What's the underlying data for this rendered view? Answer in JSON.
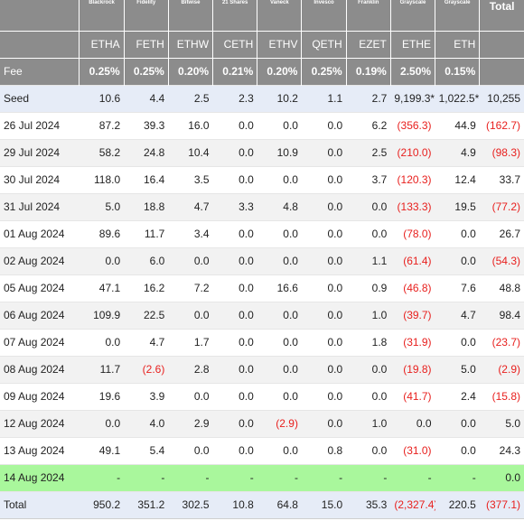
{
  "header": {
    "issuers": [
      "Blackrock",
      "Fidelity",
      "Bitwise",
      "21 Shares",
      "Vaneck",
      "Invesco",
      "Franklin",
      "Grayscale",
      "Grayscale"
    ],
    "total_label": "Total",
    "tickers": [
      "ETHA",
      "FETH",
      "ETHW",
      "CETH",
      "ETHV",
      "QETH",
      "EZET",
      "ETHE",
      "ETH"
    ],
    "fee_label": "Fee",
    "fees": [
      "0.25%",
      "0.25%",
      "0.20%",
      "0.21%",
      "0.20%",
      "0.25%",
      "0.19%",
      "2.50%",
      "0.15%"
    ]
  },
  "rows": [
    {
      "label": "Seed",
      "kind": "seed",
      "cells": [
        "10.6",
        "4.4",
        "2.5",
        "2.3",
        "10.2",
        "1.1",
        "2.7",
        "9,199.3*",
        "1,022.5*",
        "10,255"
      ]
    },
    {
      "label": "26 Jul 2024",
      "kind": "odd",
      "cells": [
        "87.2",
        "39.3",
        "16.0",
        "0.0",
        "0.0",
        "0.0",
        "6.2",
        "(356.3)",
        "44.9",
        "(162.7)"
      ]
    },
    {
      "label": "29 Jul 2024",
      "kind": "even",
      "cells": [
        "58.2",
        "24.8",
        "10.4",
        "0.0",
        "10.9",
        "0.0",
        "2.5",
        "(210.0)",
        "4.9",
        "(98.3)"
      ]
    },
    {
      "label": "30 Jul 2024",
      "kind": "odd",
      "cells": [
        "118.0",
        "16.4",
        "3.5",
        "0.0",
        "0.0",
        "0.0",
        "3.7",
        "(120.3)",
        "12.4",
        "33.7"
      ]
    },
    {
      "label": "31 Jul 2024",
      "kind": "even",
      "cells": [
        "5.0",
        "18.8",
        "4.7",
        "3.3",
        "4.8",
        "0.0",
        "0.0",
        "(133.3)",
        "19.5",
        "(77.2)"
      ]
    },
    {
      "label": "01 Aug 2024",
      "kind": "odd",
      "cells": [
        "89.6",
        "11.7",
        "3.4",
        "0.0",
        "0.0",
        "0.0",
        "0.0",
        "(78.0)",
        "0.0",
        "26.7"
      ]
    },
    {
      "label": "02 Aug 2024",
      "kind": "even",
      "cells": [
        "0.0",
        "6.0",
        "0.0",
        "0.0",
        "0.0",
        "0.0",
        "1.1",
        "(61.4)",
        "0.0",
        "(54.3)"
      ]
    },
    {
      "label": "05 Aug 2024",
      "kind": "odd",
      "cells": [
        "47.1",
        "16.2",
        "7.2",
        "0.0",
        "16.6",
        "0.0",
        "0.9",
        "(46.8)",
        "7.6",
        "48.8"
      ]
    },
    {
      "label": "06 Aug 2024",
      "kind": "even",
      "cells": [
        "109.9",
        "22.5",
        "0.0",
        "0.0",
        "0.0",
        "0.0",
        "1.0",
        "(39.7)",
        "4.7",
        "98.4"
      ]
    },
    {
      "label": "07 Aug 2024",
      "kind": "odd",
      "cells": [
        "0.0",
        "4.7",
        "1.7",
        "0.0",
        "0.0",
        "0.0",
        "1.8",
        "(31.9)",
        "0.0",
        "(23.7)"
      ]
    },
    {
      "label": "08 Aug 2024",
      "kind": "even",
      "cells": [
        "11.7",
        "(2.6)",
        "2.8",
        "0.0",
        "0.0",
        "0.0",
        "0.0",
        "(19.8)",
        "5.0",
        "(2.9)"
      ]
    },
    {
      "label": "09 Aug 2024",
      "kind": "odd",
      "cells": [
        "19.6",
        "3.9",
        "0.0",
        "0.0",
        "0.0",
        "0.0",
        "0.0",
        "(41.7)",
        "2.4",
        "(15.8)"
      ]
    },
    {
      "label": "12 Aug 2024",
      "kind": "even",
      "cells": [
        "0.0",
        "4.0",
        "2.9",
        "0.0",
        "(2.9)",
        "0.0",
        "1.0",
        "0.0",
        "0.0",
        "5.0"
      ]
    },
    {
      "label": "13 Aug 2024",
      "kind": "odd",
      "cells": [
        "49.1",
        "5.4",
        "0.0",
        "0.0",
        "0.0",
        "0.8",
        "0.0",
        "(31.0)",
        "0.0",
        "24.3"
      ]
    },
    {
      "label": "14 Aug 2024",
      "kind": "today",
      "cells": [
        "-",
        "-",
        "-",
        "-",
        "-",
        "-",
        "-",
        "-",
        "-",
        "0.0"
      ]
    },
    {
      "label": "Total",
      "kind": "total",
      "cells": [
        "950.2",
        "351.2",
        "302.5",
        "10.8",
        "64.8",
        "15.0",
        "35.3",
        "(2,327.4)",
        "220.5",
        "(377.1)"
      ]
    }
  ],
  "colors": {
    "header_bg": "#8c8c8c",
    "negative": "#e8201e",
    "today_row": "#a9f79c",
    "seed_total_row": "#e6ecf7"
  }
}
